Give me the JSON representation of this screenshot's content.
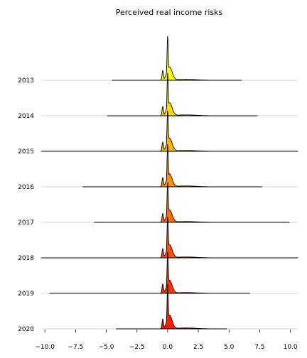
{
  "chart_data": {
    "type": "ridgeline",
    "title": "Perceived real income risks",
    "xlabel": "",
    "ylabel": "",
    "xlim": [
      -10.3,
      10.6
    ],
    "x_ticks": [
      -10.0,
      -7.5,
      -5.0,
      -2.5,
      0.0,
      2.5,
      5.0,
      7.5,
      10.0
    ],
    "x_tick_labels": [
      "−10.0",
      "−7.5",
      "−5.0",
      "−2.5",
      "0.0",
      "2.5",
      "5.0",
      "7.5",
      "10.0"
    ],
    "grid": false,
    "peak": {
      "main_x": 0.0,
      "secondary_x": -0.4
    },
    "series": [
      {
        "name": "2013",
        "x_min": -4.5,
        "x_max": 6.0,
        "color": "#ffff00",
        "peak": 1.0
      },
      {
        "name": "2014",
        "x_min": -4.9,
        "x_max": 7.3,
        "color": "#ffdb00",
        "peak": 0.97
      },
      {
        "name": "2015",
        "x_min": -10.3,
        "x_max": 10.6,
        "color": "#ffb700",
        "peak": 0.97
      },
      {
        "name": "2016",
        "x_min": -6.9,
        "x_max": 7.7,
        "color": "#ff9200",
        "peak": 0.97
      },
      {
        "name": "2017",
        "x_min": -6.0,
        "x_max": 9.9,
        "color": "#ff6e00",
        "peak": 0.92
      },
      {
        "name": "2018",
        "x_min": -10.3,
        "x_max": 10.6,
        "color": "#ff5000",
        "peak": 0.98
      },
      {
        "name": "2019",
        "x_min": -9.6,
        "x_max": 6.7,
        "color": "#ff3300",
        "peak": 0.98
      },
      {
        "name": "2020",
        "x_min": -4.2,
        "x_max": 4.8,
        "color": "#ff1a00",
        "peak": 1.02
      }
    ]
  }
}
